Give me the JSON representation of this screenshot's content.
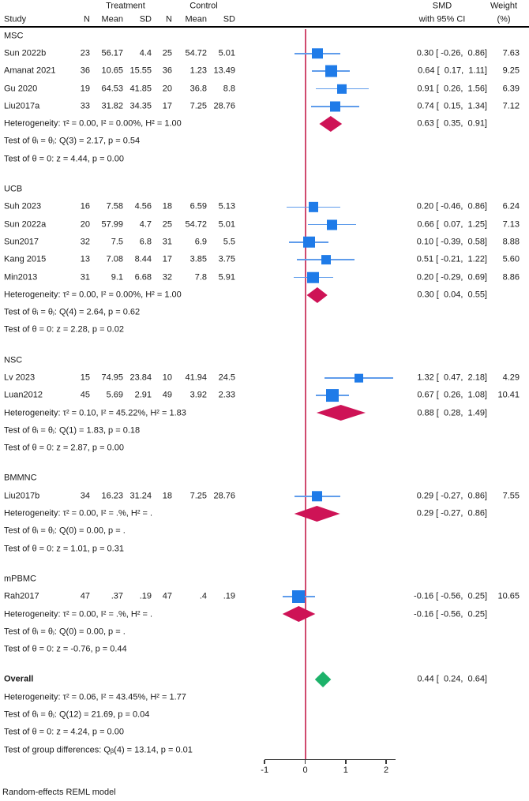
{
  "colors": {
    "square": "#1f7be8",
    "ci_line": "#5f9ceb",
    "group_diamond": "#ce1356",
    "overall_diamond": "#1db26a",
    "ref_line": "#d04a6e",
    "axis": "#3a3a3a",
    "text": "#1a1a1a",
    "separator": "#000000"
  },
  "header": {
    "treatment": "Treatment",
    "control": "Control",
    "study": "Study",
    "n": "N",
    "mean": "Mean",
    "sd": "SD",
    "smd_line1": "SMD",
    "smd_line2": "with 95% CI",
    "weight_line1": "Weight",
    "weight_line2": "(%)"
  },
  "footer": "Random-effects REML model",
  "chart_data": {
    "type": "forest",
    "effect_measure": "SMD",
    "model": "Random-effects REML model",
    "x_axis": {
      "min": -1,
      "max": 2.2,
      "ticks": [
        "-1",
        "0",
        "1",
        "2"
      ],
      "tick_values": [
        -1,
        0,
        1,
        2
      ],
      "ref_line": 0
    },
    "groups": [
      {
        "name": "MSC",
        "studies": [
          {
            "label": "Sun 2022b",
            "n1": "23",
            "mean1": "56.17",
            "sd1": "4.4",
            "n2": "25",
            "mean2": "54.72",
            "sd2": "5.01",
            "smd": 0.3,
            "lo": -0.26,
            "hi": 0.86,
            "est": "0.30 [ -0.26,  0.86]",
            "weight": 7.63,
            "weight_text": "7.63"
          },
          {
            "label": "Amanat 2021",
            "n1": "36",
            "mean1": "10.65",
            "sd1": "15.55",
            "n2": "36",
            "mean2": "1.23",
            "sd2": "13.49",
            "smd": 0.64,
            "lo": 0.17,
            "hi": 1.11,
            "est": "0.64 [  0.17,  1.11]",
            "weight": 9.25,
            "weight_text": "9.25"
          },
          {
            "label": "Gu 2020",
            "n1": "19",
            "mean1": "64.53",
            "sd1": "41.85",
            "n2": "20",
            "mean2": "36.8",
            "sd2": "8.8",
            "smd": 0.91,
            "lo": 0.26,
            "hi": 1.56,
            "est": "0.91 [  0.26,  1.56]",
            "weight": 6.39,
            "weight_text": "6.39"
          },
          {
            "label": "Liu2017a",
            "n1": "33",
            "mean1": "31.82",
            "sd1": "34.35",
            "n2": "17",
            "mean2": "7.25",
            "sd2": "28.76",
            "smd": 0.74,
            "lo": 0.15,
            "hi": 1.34,
            "est": "0.74 [  0.15,  1.34]",
            "weight": 7.12,
            "weight_text": "7.12"
          }
        ],
        "summary": {
          "smd": 0.63,
          "lo": 0.35,
          "hi": 0.91,
          "est": "0.63 [  0.35,  0.91]"
        },
        "het": "Heterogeneity: τ² = 0.00, I² = 0.00%, H² = 1.00",
        "q": "Test of θᵢ = θⱼ: Q(3) = 2.17, p = 0.54",
        "z": "Test of θ = 0: z = 4.44, p = 0.00"
      },
      {
        "name": "UCB",
        "studies": [
          {
            "label": "Suh 2023",
            "n1": "16",
            "mean1": "7.58",
            "sd1": "4.56",
            "n2": "18",
            "mean2": "6.59",
            "sd2": "5.13",
            "smd": 0.2,
            "lo": -0.46,
            "hi": 0.86,
            "est": "0.20 [ -0.46,  0.86]",
            "weight": 6.24,
            "weight_text": "6.24"
          },
          {
            "label": "Sun 2022a",
            "n1": "20",
            "mean1": "57.99",
            "sd1": "4.7",
            "n2": "25",
            "mean2": "54.72",
            "sd2": "5.01",
            "smd": 0.66,
            "lo": 0.07,
            "hi": 1.25,
            "est": "0.66 [  0.07,  1.25]",
            "weight": 7.13,
            "weight_text": "7.13"
          },
          {
            "label": "Sun2017",
            "n1": "32",
            "mean1": "7.5",
            "sd1": "6.8",
            "n2": "31",
            "mean2": "6.9",
            "sd2": "5.5",
            "smd": 0.1,
            "lo": -0.39,
            "hi": 0.58,
            "est": "0.10 [ -0.39,  0.58]",
            "weight": 8.88,
            "weight_text": "8.88"
          },
          {
            "label": "Kang 2015",
            "n1": "13",
            "mean1": "7.08",
            "sd1": "8.44",
            "n2": "17",
            "mean2": "3.85",
            "sd2": "3.75",
            "smd": 0.51,
            "lo": -0.21,
            "hi": 1.22,
            "est": "0.51 [ -0.21,  1.22]",
            "weight": 5.6,
            "weight_text": "5.60"
          },
          {
            "label": "Min2013",
            "n1": "31",
            "mean1": "9.1",
            "sd1": "6.68",
            "n2": "32",
            "mean2": "7.8",
            "sd2": "5.91",
            "smd": 0.2,
            "lo": -0.29,
            "hi": 0.69,
            "est": "0.20 [ -0.29,  0.69]",
            "weight": 8.86,
            "weight_text": "8.86"
          }
        ],
        "summary": {
          "smd": 0.3,
          "lo": 0.04,
          "hi": 0.55,
          "est": "0.30 [  0.04,  0.55]"
        },
        "het": "Heterogeneity: τ² = 0.00, I² = 0.00%, H² = 1.00",
        "q": "Test of θᵢ = θⱼ: Q(4) = 2.64, p = 0.62",
        "z": "Test of θ = 0: z = 2.28, p = 0.02"
      },
      {
        "name": "NSC",
        "studies": [
          {
            "label": "Lv 2023",
            "n1": "15",
            "mean1": "74.95",
            "sd1": "23.84",
            "n2": "10",
            "mean2": "41.94",
            "sd2": "24.5",
            "smd": 1.32,
            "lo": 0.47,
            "hi": 2.18,
            "est": "1.32 [  0.47,  2.18]",
            "weight": 4.29,
            "weight_text": "4.29"
          },
          {
            "label": "Luan2012",
            "n1": "45",
            "mean1": "5.69",
            "sd1": "2.91",
            "n2": "49",
            "mean2": "3.92",
            "sd2": "2.33",
            "smd": 0.67,
            "lo": 0.26,
            "hi": 1.08,
            "est": "0.67 [  0.26,  1.08]",
            "weight": 10.41,
            "weight_text": "10.41"
          }
        ],
        "summary": {
          "smd": 0.88,
          "lo": 0.28,
          "hi": 1.49,
          "est": "0.88 [  0.28,  1.49]"
        },
        "het": "Heterogeneity: τ² = 0.10, I² = 45.22%, H² = 1.83",
        "q": "Test of θᵢ = θⱼ: Q(1) = 1.83, p = 0.18",
        "z": "Test of θ = 0: z = 2.87, p = 0.00"
      },
      {
        "name": "BMMNC",
        "studies": [
          {
            "label": "Liu2017b",
            "n1": "34",
            "mean1": "16.23",
            "sd1": "31.24",
            "n2": "18",
            "mean2": "7.25",
            "sd2": "28.76",
            "smd": 0.29,
            "lo": -0.27,
            "hi": 0.86,
            "est": "0.29 [ -0.27,  0.86]",
            "weight": 7.55,
            "weight_text": "7.55"
          }
        ],
        "summary": {
          "smd": 0.29,
          "lo": -0.27,
          "hi": 0.86,
          "est": "0.29 [ -0.27,  0.86]"
        },
        "het": "Heterogeneity: τ² = 0.00, I² = .%, H² = .",
        "q": "Test of θᵢ = θⱼ: Q(0) = 0.00, p = .",
        "z": "Test of θ = 0: z = 1.01, p = 0.31"
      },
      {
        "name": "mPBMC",
        "studies": [
          {
            "label": "Rah2017",
            "n1": "47",
            "mean1": ".37",
            "sd1": ".19",
            "n2": "47",
            "mean2": ".4",
            "sd2": ".19",
            "smd": -0.16,
            "lo": -0.56,
            "hi": 0.25,
            "est": "-0.16 [ -0.56,  0.25]",
            "weight": 10.65,
            "weight_text": "10.65"
          }
        ],
        "summary": {
          "smd": -0.16,
          "lo": -0.56,
          "hi": 0.25,
          "est": "-0.16 [ -0.56,  0.25]"
        },
        "het": "Heterogeneity: τ² = 0.00, I² = .%, H² = .",
        "q": "Test of θᵢ = θⱼ: Q(0) = 0.00, p = .",
        "z": "Test of θ = 0: z = -0.76, p = 0.44"
      }
    ],
    "overall": {
      "label": "Overall",
      "summary": {
        "smd": 0.44,
        "lo": 0.24,
        "hi": 0.64,
        "est": "0.44 [  0.24,  0.64]"
      },
      "het": "Heterogeneity: τ² = 0.06, I² = 43.45%, H² = 1.77",
      "q": "Test of θᵢ = θⱼ: Q(12) = 21.69, p = 0.04",
      "z": "Test of θ = 0: z = 4.24, p = 0.00",
      "group_diff": "Test of group differences: Qᵦ(4) = 13.14, p = 0.01"
    }
  }
}
